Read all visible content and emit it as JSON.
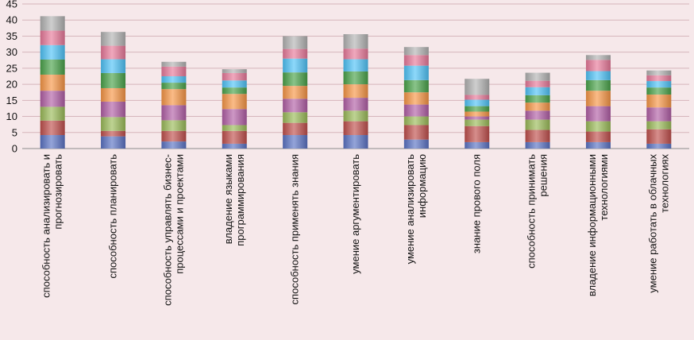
{
  "chart_data": {
    "type": "bar",
    "stacked": true,
    "grid": true,
    "legend": "none",
    "ylim": [
      0,
      45
    ],
    "yticks": [
      0,
      5,
      10,
      15,
      20,
      25,
      30,
      35,
      40,
      45
    ],
    "categories": [
      [
        "способность анализировать и",
        "прогнозировать"
      ],
      [
        "способность планировать"
      ],
      [
        "способность управлять бизнес-",
        "процессами и проектами"
      ],
      [
        "владение языками",
        "программирования"
      ],
      [
        "способность применять знания"
      ],
      [
        "умение аргументировать"
      ],
      [
        "умение анализировать",
        "информацию"
      ],
      [
        "знание прового поля"
      ],
      [
        "способность принимать",
        "решения"
      ],
      [
        "владение информационными",
        "технологиями"
      ],
      [
        "умение работать в облачных",
        "технологиях"
      ]
    ],
    "series": [
      {
        "color": "#5b73c4",
        "values": [
          4.2,
          3.8,
          2.2,
          1.5,
          4.2,
          4.2,
          2.8,
          2.0,
          2.0,
          2.0,
          1.5
        ]
      },
      {
        "color": "#c0504d",
        "values": [
          4.5,
          1.7,
          3.3,
          4.0,
          3.8,
          4.3,
          4.5,
          5.0,
          3.8,
          3.3,
          4.5
        ]
      },
      {
        "color": "#9bbb59",
        "values": [
          4.3,
          4.3,
          3.3,
          1.8,
          3.3,
          3.3,
          2.7,
          2.0,
          3.2,
          3.2,
          2.5
        ]
      },
      {
        "color": "#b25fa6",
        "values": [
          5.0,
          4.8,
          4.7,
          5.0,
          4.2,
          4.0,
          3.7,
          1.0,
          2.8,
          4.7,
          4.3
        ]
      },
      {
        "color": "#f79646",
        "values": [
          5.0,
          4.2,
          5.0,
          4.7,
          4.0,
          4.2,
          3.8,
          1.5,
          2.5,
          4.8,
          4.0
        ]
      },
      {
        "color": "#4aa34a",
        "values": [
          4.7,
          4.7,
          2.0,
          2.0,
          4.2,
          4.0,
          3.8,
          1.7,
          2.3,
          3.3,
          2.2
        ]
      },
      {
        "color": "#4fc3f7",
        "values": [
          4.5,
          4.3,
          2.0,
          2.2,
          4.3,
          3.8,
          4.5,
          2.0,
          2.5,
          2.8,
          2.0
        ]
      },
      {
        "color": "#e8799a",
        "values": [
          4.5,
          4.2,
          3.0,
          2.3,
          3.0,
          3.3,
          3.3,
          1.5,
          2.0,
          3.5,
          1.8
        ]
      },
      {
        "color": "#b3b3b3",
        "values": [
          4.5,
          4.3,
          1.5,
          1.2,
          4.0,
          4.5,
          2.5,
          5.0,
          2.5,
          1.5,
          1.5
        ]
      }
    ]
  }
}
